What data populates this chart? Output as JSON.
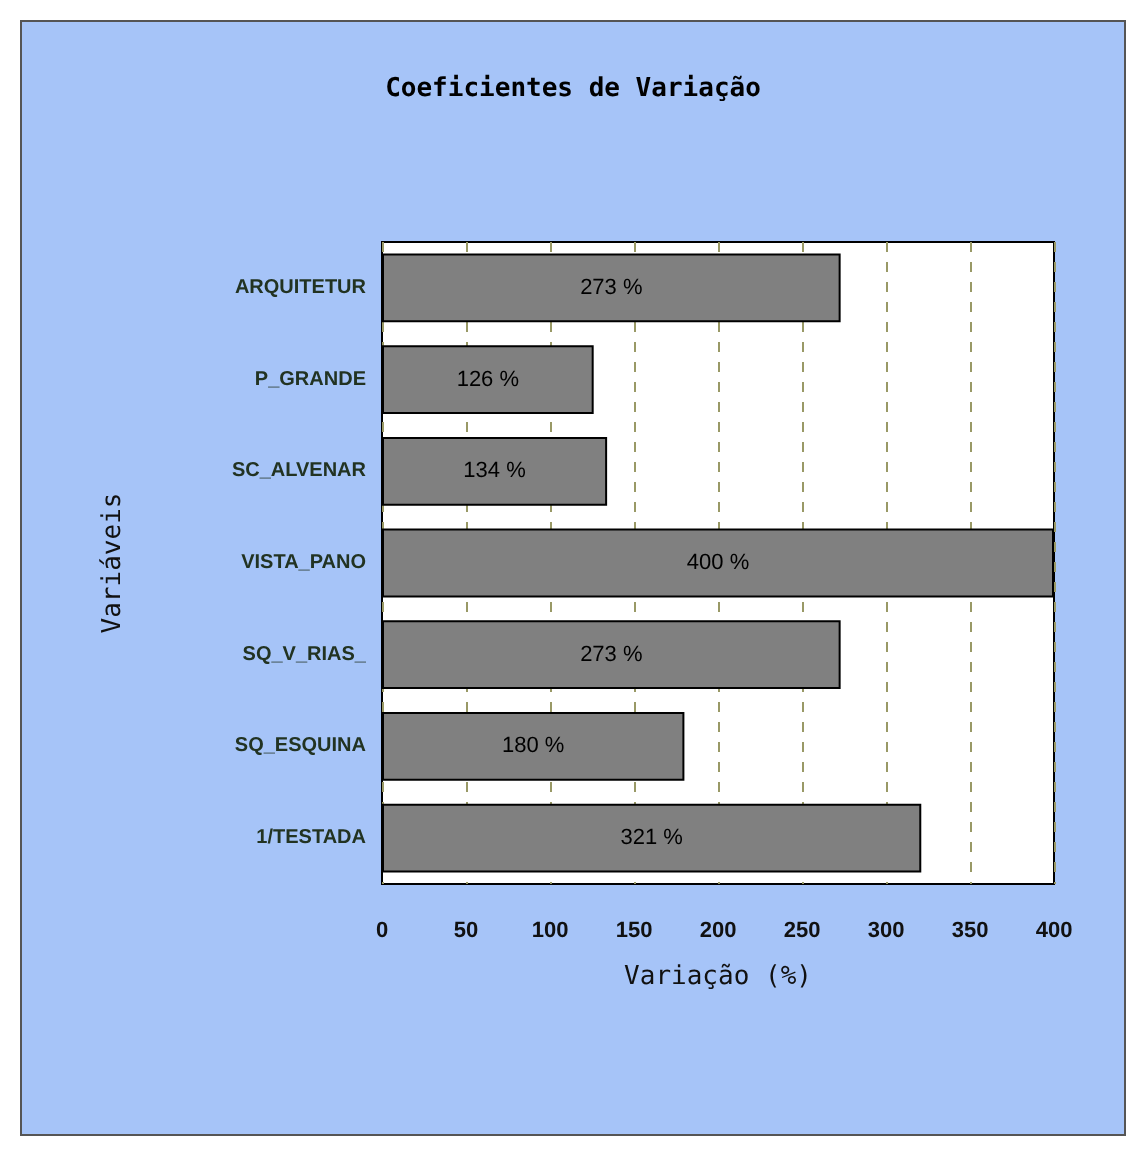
{
  "chart_data": {
    "type": "bar",
    "orientation": "horizontal",
    "title": "Coeficientes de Variação",
    "xlabel": "Variação (%)",
    "ylabel": "Variáveis",
    "categories": [
      "ARQUITETUR",
      "P_GRANDE",
      "SC_ALVENAR",
      "VISTA_PANO",
      "SQ_V_RIAS_",
      "SQ_ESQUINA",
      "1/TESTADA"
    ],
    "values": [
      273,
      126,
      134,
      400,
      273,
      180,
      321
    ],
    "value_labels": [
      "273 %",
      "126 %",
      "134 %",
      "400 %",
      "273 %",
      "180 %",
      "321 %"
    ],
    "color": "#808080",
    "xlim": [
      0,
      400
    ],
    "xticks": [
      0,
      50,
      100,
      150,
      200,
      250,
      300,
      350,
      400
    ],
    "grid": "x"
  }
}
